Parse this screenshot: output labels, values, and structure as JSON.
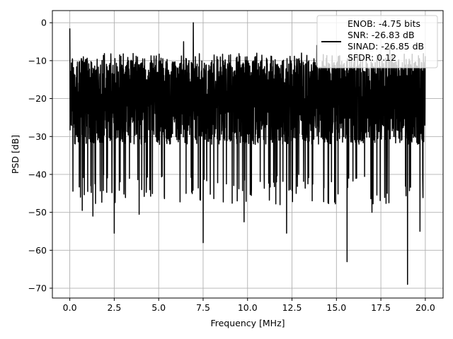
{
  "chart_data": {
    "type": "line",
    "xlabel": "Frequency [MHz]",
    "ylabel": "PSD [dB]",
    "xlim": [
      -0.98,
      21.0
    ],
    "ylim": [
      -72.6,
      3.2
    ],
    "xticks": [
      0.0,
      2.5,
      5.0,
      7.5,
      10.0,
      12.5,
      15.0,
      17.5,
      20.0
    ],
    "xtick_labels": [
      "0.0",
      "2.5",
      "5.0",
      "7.5",
      "10.0",
      "12.5",
      "15.0",
      "17.5",
      "20.0"
    ],
    "yticks": [
      0,
      -10,
      -20,
      -30,
      -40,
      -50,
      -60,
      -70
    ],
    "ytick_labels": [
      "0",
      "−10",
      "−20",
      "−30",
      "−40",
      "−50",
      "−60",
      "−70"
    ],
    "grid": true,
    "legend_position": "top-right",
    "series": [
      {
        "color": "#000000",
        "x_range": [
          0.0,
          20.0
        ],
        "typical_band_db": [
          -36,
          -10
        ],
        "peaks": [
          [
            0.0,
            -1.5
          ],
          [
            6.95,
            0.0
          ],
          [
            6.4,
            -5.0
          ],
          [
            13.9,
            -6.0
          ],
          [
            18.0,
            -6.5
          ]
        ],
        "dips": [
          [
            0.6,
            -46
          ],
          [
            0.7,
            -49.5
          ],
          [
            1.3,
            -51
          ],
          [
            2.5,
            -55.5
          ],
          [
            3.9,
            -50.5
          ],
          [
            7.5,
            -58
          ],
          [
            9.8,
            -52.5
          ],
          [
            12.2,
            -55.5
          ],
          [
            15.6,
            -63
          ],
          [
            17.0,
            -50
          ],
          [
            19.0,
            -69
          ],
          [
            19.7,
            -55
          ]
        ]
      }
    ],
    "legend": {
      "line_color": "#000000",
      "entries": [
        "ENOB: -4.75 bits",
        "SNR: -26.83 dB",
        "SINAD: -26.85 dB",
        "SFDR: 0.12"
      ]
    }
  }
}
